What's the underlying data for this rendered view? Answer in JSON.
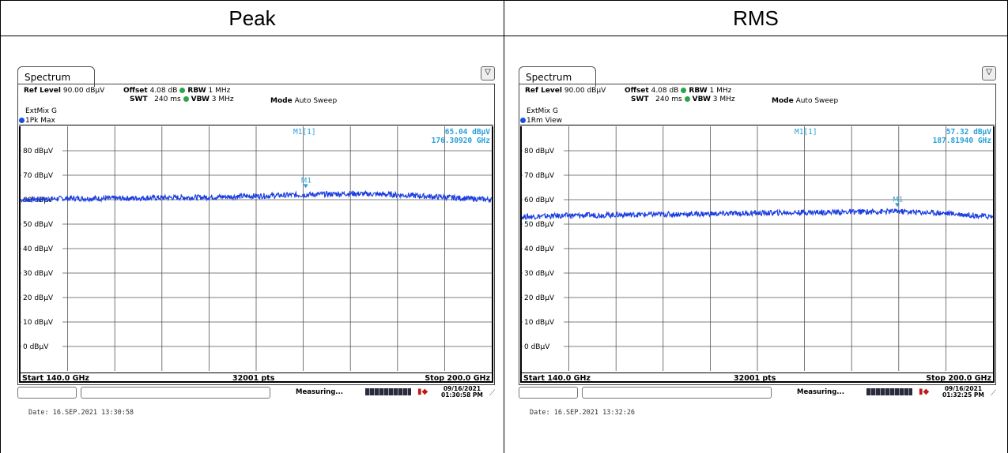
{
  "headers": [
    "Peak",
    "RMS"
  ],
  "panels": [
    {
      "tab": "Spectrum",
      "settings": {
        "ref_level_label": "Ref Level",
        "ref_level": "90.00 dBµV",
        "offset_label": "Offset",
        "offset": "4.08 dB",
        "rbw_label": "RBW",
        "rbw": "1 MHz",
        "swt_label": "SWT",
        "swt": "240 ms",
        "vbw_label": "VBW",
        "vbw": "3 MHz",
        "mode_label": "Mode",
        "mode": "Auto Sweep",
        "extmix": "ExtMix G"
      },
      "trace_label": "1Pk Max",
      "marker": {
        "label": "M1[1]",
        "value": "65.04 dBµV",
        "freq": "176.30920 GHz",
        "name": "M1"
      },
      "footer": {
        "start": "Start 140.0 GHz",
        "pts": "32001 pts",
        "stop": "Stop 200.0 GHz"
      },
      "status": {
        "measuring": "Measuring...",
        "date_line1": "09/16/2021",
        "date_line2": "01:30:58 PM"
      },
      "date_caption": "Date: 16.SEP.2021  13:30:58"
    },
    {
      "tab": "Spectrum",
      "settings": {
        "ref_level_label": "Ref Level",
        "ref_level": "90.00 dBµV",
        "offset_label": "Offset",
        "offset": "4.08 dB",
        "rbw_label": "RBW",
        "rbw": "1 MHz",
        "swt_label": "SWT",
        "swt": "240 ms",
        "vbw_label": "VBW",
        "vbw": "3 MHz",
        "mode_label": "Mode",
        "mode": "Auto Sweep",
        "extmix": "ExtMix G"
      },
      "trace_label": "1Rm View",
      "marker": {
        "label": "M1[1]",
        "value": "57.32 dBµV",
        "freq": "187.81940 GHz",
        "name": "M1"
      },
      "footer": {
        "start": "Start 140.0 GHz",
        "pts": "32001 pts",
        "stop": "Stop 200.0 GHz"
      },
      "status": {
        "measuring": "Measuring...",
        "date_line1": "09/16/2021",
        "date_line2": "01:32:25 PM"
      },
      "date_caption": "Date: 16.SEP.2021  13:32:26"
    }
  ],
  "chart_data": [
    {
      "type": "line",
      "title": "",
      "xlabel": "",
      "ylabel": "",
      "xlim": [
        140.0,
        200.0
      ],
      "ylim": [
        -10,
        90
      ],
      "y_ticks": [
        "80 dBµV",
        "70 dBµV",
        "60 dBµV",
        "50 dBµV",
        "40 dBµV",
        "30 dBµV",
        "20 dBµV",
        "10 dBµV",
        "0 dBµV"
      ],
      "y_tick_values": [
        80,
        70,
        60,
        50,
        40,
        30,
        20,
        10,
        0
      ],
      "grid": true,
      "color": "#1c3ee0",
      "series": [
        {
          "x": [
            140,
            146,
            152,
            158,
            164,
            170,
            176,
            182,
            188,
            194,
            200
          ],
          "values": [
            60.0,
            60.5,
            60.5,
            60.8,
            61.0,
            61.5,
            62.0,
            62.5,
            62.0,
            61.0,
            60.0
          ]
        }
      ],
      "marker": {
        "x": 176.3092,
        "y": 65.04
      }
    },
    {
      "type": "line",
      "title": "",
      "xlabel": "",
      "ylabel": "",
      "xlim": [
        140.0,
        200.0
      ],
      "ylim": [
        -10,
        90
      ],
      "y_ticks": [
        "80 dBµV",
        "70 dBµV",
        "60 dBµV",
        "50 dBµV",
        "40 dBµV",
        "30 dBµV",
        "20 dBµV",
        "10 dBµV",
        "0 dBµV"
      ],
      "y_tick_values": [
        80,
        70,
        60,
        50,
        40,
        30,
        20,
        10,
        0
      ],
      "grid": true,
      "color": "#1c3ee0",
      "series": [
        {
          "x": [
            140,
            146,
            152,
            158,
            164,
            170,
            176,
            182,
            188,
            194,
            200
          ],
          "values": [
            53.0,
            53.5,
            53.8,
            54.0,
            54.2,
            54.5,
            54.8,
            55.0,
            55.2,
            54.5,
            53.0
          ]
        }
      ],
      "marker": {
        "x": 187.8194,
        "y": 57.32
      }
    }
  ]
}
